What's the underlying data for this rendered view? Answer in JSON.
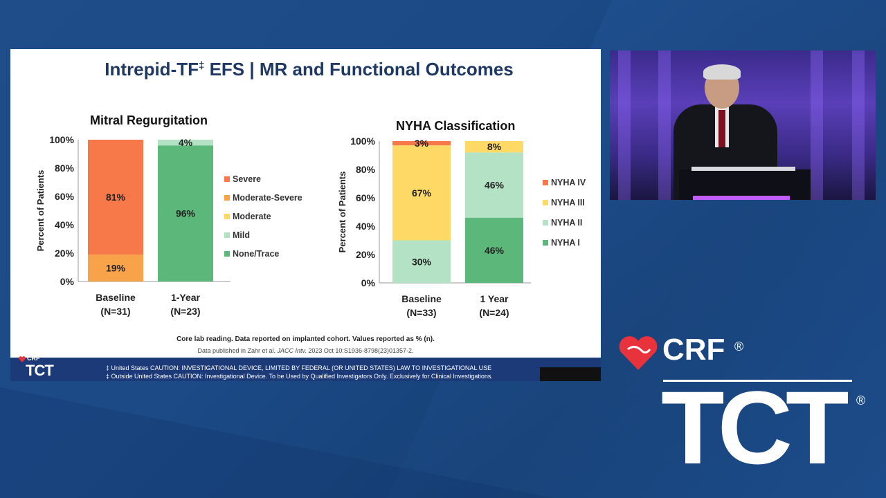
{
  "slide": {
    "title_main": "Intrepid-TF",
    "title_sup": "‡",
    "title_rest": " EFS | MR and Functional Outcomes",
    "footnote1": "Core lab reading. Data reported on implanted cohort. Values reported as % (n).",
    "footnote2_pre": "Data published in Zahr et al. ",
    "footnote2_journal": "JACC Intv.",
    "footnote2_post": " 2023 Oct 10:S1936-8798(23)01357-2.",
    "caution_us": "‡ United States CAUTION: INVESTIGATIONAL DEVICE, LIMITED BY FEDERAL (OR UNITED STATES) LAW TO INVESTIGATIONAL USE",
    "caution_ous": "‡ Outside United States CAUTION: Investigational Device. To be Used by Qualified Investigators Only. Exclusively for Clinical Investigations.",
    "logo_crf": "CRF",
    "logo_tct": "TCT"
  },
  "brand": {
    "crf": "CRF",
    "tct": "TCT",
    "reg": "®"
  },
  "chart_data": [
    {
      "type": "bar",
      "stacked": true,
      "title": "Mitral Regurgitation",
      "ylabel": "Percent of Patients",
      "ylim": [
        0,
        100
      ],
      "yticks": [
        "0%",
        "20%",
        "40%",
        "60%",
        "80%",
        "100%"
      ],
      "categories": [
        "Baseline",
        "1-Year"
      ],
      "category_n": [
        "(N=31)",
        "(N=23)"
      ],
      "legend_position": "right",
      "series": [
        {
          "name": "None/Trace",
          "color": "#5cb87a",
          "values": [
            0,
            96
          ],
          "labels": [
            "",
            "96%"
          ]
        },
        {
          "name": "Mild",
          "color": "#b3e3c4",
          "values": [
            0,
            4
          ],
          "labels": [
            "",
            "4%"
          ]
        },
        {
          "name": "Moderate",
          "color": "#ffd966",
          "values": [
            0,
            0
          ],
          "labels": [
            "",
            ""
          ]
        },
        {
          "name": "Moderate-Severe",
          "color": "#f8a24a",
          "values": [
            19,
            0
          ],
          "labels": [
            "19%",
            ""
          ]
        },
        {
          "name": "Severe",
          "color": "#f7794a",
          "values": [
            81,
            0
          ],
          "labels": [
            "81%",
            ""
          ]
        }
      ]
    },
    {
      "type": "bar",
      "stacked": true,
      "title": "NYHA Classification",
      "ylabel": "Percent of Patients",
      "ylim": [
        0,
        100
      ],
      "yticks": [
        "0%",
        "20%",
        "40%",
        "60%",
        "80%",
        "100%"
      ],
      "categories": [
        "Baseline",
        "1 Year"
      ],
      "category_n": [
        "(N=33)",
        "(N=24)"
      ],
      "legend_position": "right",
      "series": [
        {
          "name": "NYHA I",
          "color": "#5cb87a",
          "values": [
            0,
            46
          ],
          "labels": [
            "",
            "46%"
          ]
        },
        {
          "name": "NYHA II",
          "color": "#b3e3c4",
          "values": [
            30,
            46
          ],
          "labels": [
            "30%",
            "46%"
          ]
        },
        {
          "name": "NYHA III",
          "color": "#ffd966",
          "values": [
            67,
            8
          ],
          "labels": [
            "67%",
            "8%"
          ]
        },
        {
          "name": "NYHA IV",
          "color": "#f7794a",
          "values": [
            3,
            0
          ],
          "labels": [
            "3%",
            ""
          ]
        }
      ]
    }
  ]
}
